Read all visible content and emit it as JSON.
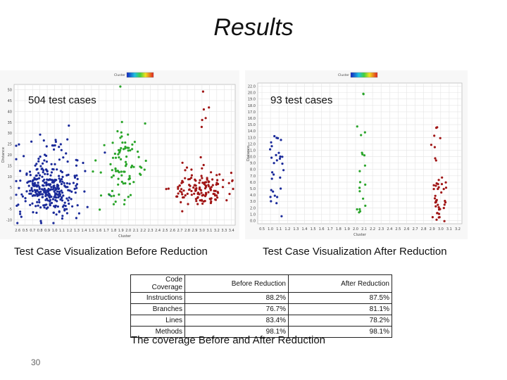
{
  "slide": {
    "title": "Results",
    "page_number": "30",
    "table_caption": "The coverage Before and After Reduction"
  },
  "panels": [
    {
      "overlay_label": "504 test cases",
      "caption": "Test Case Visualization Before Reduction",
      "legend_text": "Cluster",
      "x_ticks": [
        "2.6",
        "0.5",
        "0.7",
        "0.8",
        "0.9",
        "1.0",
        "1.1",
        "1.2",
        "1.3",
        "1.4",
        "1.5",
        "1.6",
        "1.7",
        "1.8",
        "1.9",
        "2.0",
        "2.1",
        "2.2",
        "2.3",
        "2.4",
        "2.5",
        "2.6",
        "2.7",
        "2.8",
        "2.9",
        "3.0",
        "3.1",
        "3.2",
        "3.3",
        "3.4"
      ],
      "x_label": "Cluster",
      "y_ticks": [
        "50",
        "45",
        "40",
        "35",
        "30",
        "25",
        "20",
        "15",
        "10",
        "5",
        "0",
        "-5",
        "-10"
      ],
      "y_label": "Distance",
      "series_colors": [
        "#1a2a9a",
        "#2aa52a",
        "#a01515"
      ]
    },
    {
      "overlay_label": "93 test cases",
      "caption": "Test Case Visualization After Reduction",
      "legend_text": "Cluster",
      "x_ticks": [
        "0.5",
        "1.0",
        "1.1",
        "1.2",
        "1.3",
        "1.4",
        "1.5",
        "1.6",
        "1.7",
        "1.8",
        "1.9",
        "2.0",
        "2.1",
        "2.2",
        "2.3",
        "2.4",
        "2.5",
        "2.6",
        "2.7",
        "2.8",
        "2.9",
        "3.0",
        "3.1",
        "3.2"
      ],
      "x_label": "Cluster",
      "y_ticks": [
        "22.0",
        "20.0",
        "19.0",
        "18.0",
        "17.0",
        "16.0",
        "15.0",
        "14.0",
        "13.0",
        "12.0",
        "11.0",
        "10.0",
        "9.0",
        "8.0",
        "7.0",
        "6.0",
        "5.0",
        "4.0",
        "3.0",
        "2.0",
        "1.0",
        "0.0"
      ],
      "y_label": "Distance",
      "series_colors": [
        "#1a2a9a",
        "#2aa52a",
        "#a01515"
      ]
    }
  ],
  "coverage_table": {
    "headers": [
      "Code Coverage",
      "Before Reduction",
      "After Reduction"
    ],
    "rows": [
      [
        "Instructions",
        "88.2%",
        "87.5%"
      ],
      [
        "Branches",
        "76.7%",
        "81.1%"
      ],
      [
        "Lines",
        "83.4%",
        "78.2%"
      ],
      [
        "Methods",
        "98.1%",
        "98.1%"
      ]
    ]
  }
}
